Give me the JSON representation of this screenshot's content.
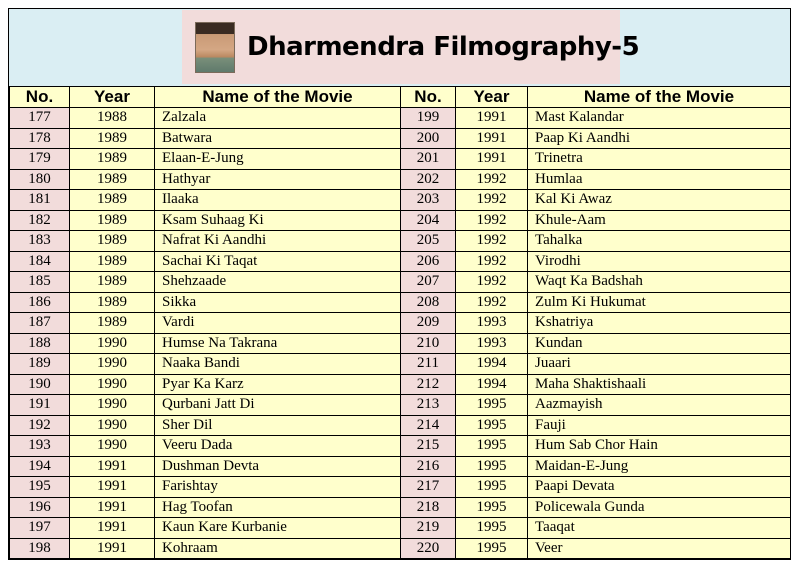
{
  "title": "Dharmendra Filmography-5",
  "headers": {
    "no": "No.",
    "year": "Year",
    "name": "Name of the Movie"
  },
  "colors": {
    "banner": "#daeef3",
    "title_box": "#f2dcdb",
    "no_column": "#f2dcdb",
    "body": "#ffffcc"
  },
  "left_rows": [
    {
      "no": "177",
      "year": "1988",
      "name": "Zalzala"
    },
    {
      "no": "178",
      "year": "1989",
      "name": "Batwara"
    },
    {
      "no": "179",
      "year": "1989",
      "name": "Elaan-E-Jung"
    },
    {
      "no": "180",
      "year": "1989",
      "name": "Hathyar"
    },
    {
      "no": "181",
      "year": "1989",
      "name": "Ilaaka"
    },
    {
      "no": "182",
      "year": "1989",
      "name": "Ksam Suhaag Ki"
    },
    {
      "no": "183",
      "year": "1989",
      "name": "Nafrat Ki Aandhi"
    },
    {
      "no": "184",
      "year": "1989",
      "name": "Sachai Ki Taqat"
    },
    {
      "no": "185",
      "year": "1989",
      "name": "Shehzaade"
    },
    {
      "no": "186",
      "year": "1989",
      "name": "Sikka"
    },
    {
      "no": "187",
      "year": "1989",
      "name": "Vardi"
    },
    {
      "no": "188",
      "year": "1990",
      "name": "Humse Na Takrana"
    },
    {
      "no": "189",
      "year": "1990",
      "name": "Naaka Bandi"
    },
    {
      "no": "190",
      "year": "1990",
      "name": "Pyar Ka Karz"
    },
    {
      "no": "191",
      "year": "1990",
      "name": "Qurbani Jatt Di"
    },
    {
      "no": "192",
      "year": "1990",
      "name": "Sher Dil"
    },
    {
      "no": "193",
      "year": "1990",
      "name": "Veeru Dada"
    },
    {
      "no": "194",
      "year": "1991",
      "name": "Dushman Devta"
    },
    {
      "no": "195",
      "year": "1991",
      "name": "Farishtay"
    },
    {
      "no": "196",
      "year": "1991",
      "name": "Hag Toofan"
    },
    {
      "no": "197",
      "year": "1991",
      "name": "Kaun Kare Kurbanie"
    },
    {
      "no": "198",
      "year": "1991",
      "name": "Kohraam"
    }
  ],
  "right_rows": [
    {
      "no": "199",
      "year": "1991",
      "name": "Mast Kalandar"
    },
    {
      "no": "200",
      "year": "1991",
      "name": "Paap Ki Aandhi"
    },
    {
      "no": "201",
      "year": "1991",
      "name": "Trinetra"
    },
    {
      "no": "202",
      "year": "1992",
      "name": "Humlaa"
    },
    {
      "no": "203",
      "year": "1992",
      "name": "Kal Ki Awaz"
    },
    {
      "no": "204",
      "year": "1992",
      "name": "Khule-Aam"
    },
    {
      "no": "205",
      "year": "1992",
      "name": "Tahalka"
    },
    {
      "no": "206",
      "year": "1992",
      "name": "Virodhi"
    },
    {
      "no": "207",
      "year": "1992",
      "name": "Waqt Ka Badshah"
    },
    {
      "no": "208",
      "year": "1992",
      "name": "Zulm Ki Hukumat"
    },
    {
      "no": "209",
      "year": "1993",
      "name": "Kshatriya"
    },
    {
      "no": "210",
      "year": "1993",
      "name": "Kundan"
    },
    {
      "no": "211",
      "year": "1994",
      "name": "Juaari"
    },
    {
      "no": "212",
      "year": "1994",
      "name": "Maha Shaktishaali"
    },
    {
      "no": "213",
      "year": "1995",
      "name": "Aazmayish"
    },
    {
      "no": "214",
      "year": "1995",
      "name": "Fauji"
    },
    {
      "no": "215",
      "year": "1995",
      "name": "Hum Sab Chor Hain"
    },
    {
      "no": "216",
      "year": "1995",
      "name": "Maidan-E-Jung"
    },
    {
      "no": "217",
      "year": "1995",
      "name": "Paapi Devata"
    },
    {
      "no": "218",
      "year": "1995",
      "name": "Policewala Gunda"
    },
    {
      "no": "219",
      "year": "1995",
      "name": "Taaqat"
    },
    {
      "no": "220",
      "year": "1995",
      "name": "Veer"
    }
  ]
}
